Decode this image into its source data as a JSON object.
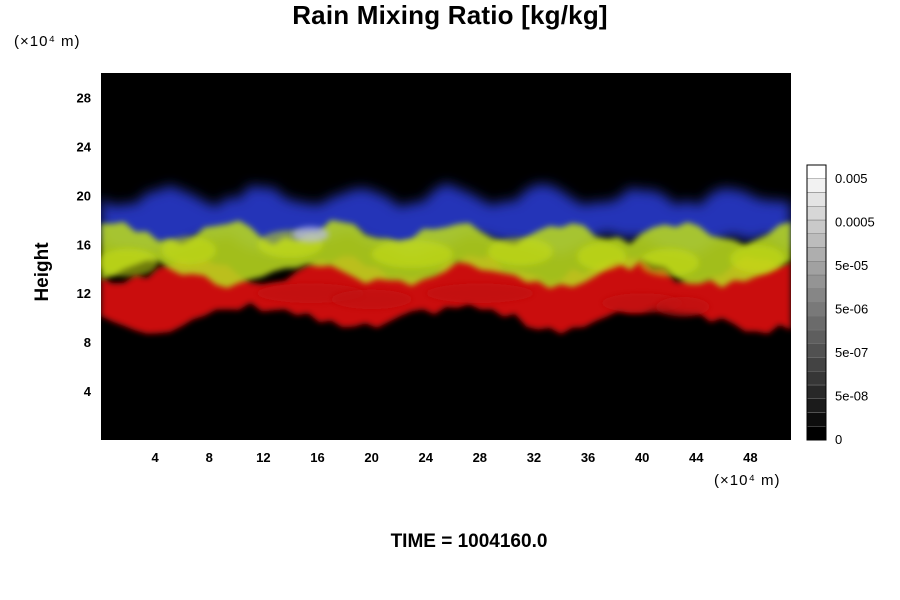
{
  "chart_data": {
    "type": "heatmap",
    "title": "Rain Mixing Ratio [kg/kg]",
    "ylabel": "Height",
    "x_unit": "(×10⁴ m)",
    "y_unit": "(×10⁴ m)",
    "x_ticks": [
      4,
      8,
      12,
      16,
      20,
      24,
      28,
      32,
      36,
      40,
      44,
      48
    ],
    "y_ticks": [
      4,
      8,
      12,
      16,
      20,
      24,
      28
    ],
    "xlim": [
      0,
      51
    ],
    "ylim": [
      0,
      30
    ],
    "grid": false,
    "colorbar": {
      "ticks": [
        "0.005",
        "0.0005",
        "5e-05",
        "5e-06",
        "5e-07",
        "5e-08",
        "0"
      ],
      "levels": 20,
      "colors": [
        "#000000",
        "#ffffff"
      ]
    },
    "bands": [
      {
        "name": "blue",
        "color": "#2b3dd8",
        "height_range": [
          16,
          20
        ]
      },
      {
        "name": "yellow-green",
        "color": "#b8d820",
        "height_range": [
          13.5,
          17
        ]
      },
      {
        "name": "red",
        "color": "#e01010",
        "height_range": [
          10,
          14
        ]
      }
    ]
  },
  "footer": {
    "time_text": "TIME = 1004160.0"
  }
}
